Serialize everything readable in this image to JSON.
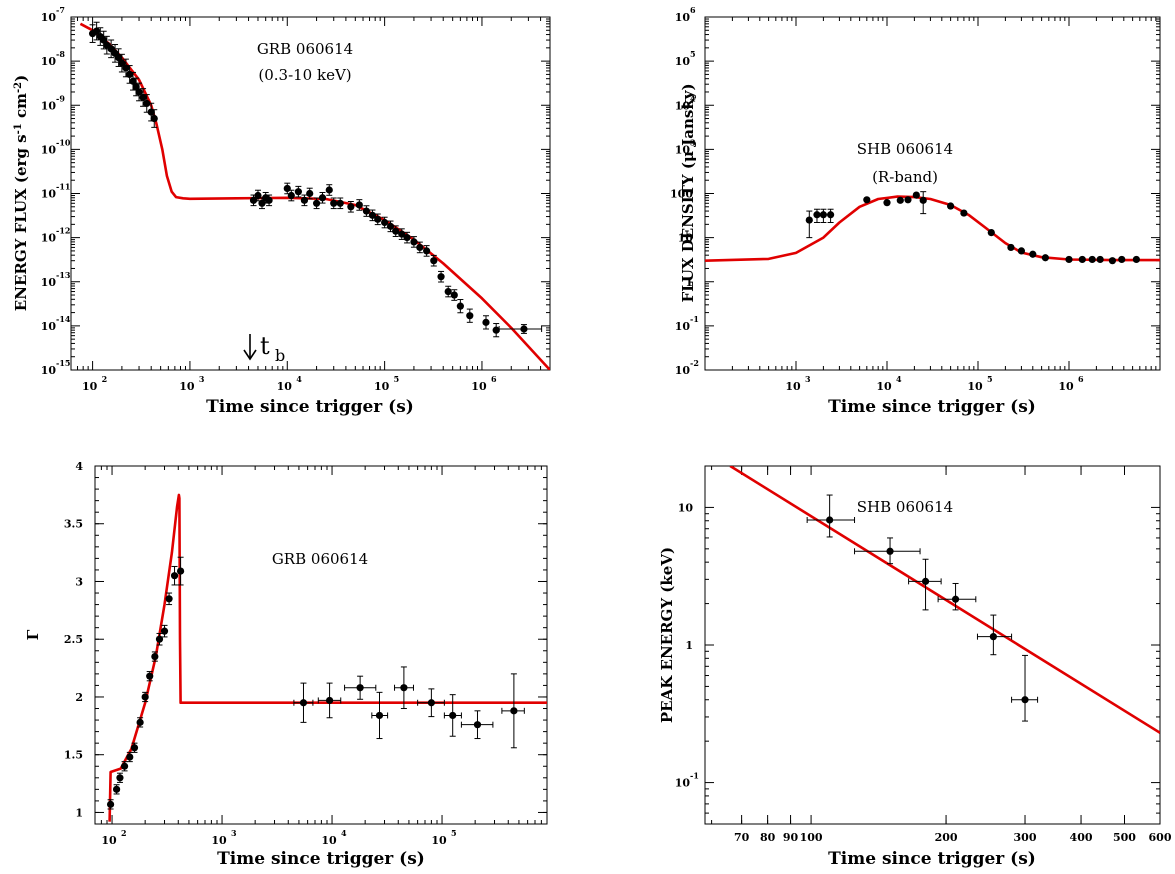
{
  "chart_data": [
    {
      "type": "scatter",
      "xscale": "log",
      "yscale": "log",
      "xlim": [
        60,
        5000000
      ],
      "ylim": [
        1e-15,
        1e-07
      ],
      "xlabel": "Time since trigger (s)",
      "ylabel": "ENERGY FLUX (erg s-1 cm-2)",
      "annotations": [
        "GRB 060614",
        "(0.3-10 keV)"
      ],
      "marker_label": "t",
      "marker_label_sub": "b",
      "marker_x": 4000,
      "x_ticks": [
        100,
        1000,
        10000,
        100000,
        1000000
      ],
      "y_ticks": [
        1e-15,
        1e-14,
        1e-13,
        1e-12,
        1e-11,
        1e-10,
        1e-09,
        1e-08,
        1e-07
      ],
      "series": [
        {
          "role": "data",
          "points": [
            {
              "x": 100,
              "y": 4.2e-08,
              "ey": 0.2
            },
            {
              "x": 110,
              "y": 4.8e-08,
              "ey": 0.2
            },
            {
              "x": 120,
              "y": 3.6e-08,
              "ey": 0.2
            },
            {
              "x": 130,
              "y": 3e-08,
              "ey": 0.2
            },
            {
              "x": 140,
              "y": 2.3e-08,
              "ey": 0.2
            },
            {
              "x": 155,
              "y": 1.9e-08,
              "ey": 0.2
            },
            {
              "x": 170,
              "y": 1.5e-08,
              "ey": 0.2
            },
            {
              "x": 185,
              "y": 1.2e-08,
              "ey": 0.2
            },
            {
              "x": 200,
              "y": 9e-09,
              "ey": 0.2
            },
            {
              "x": 220,
              "y": 7e-09,
              "ey": 0.2
            },
            {
              "x": 240,
              "y": 5e-09,
              "ey": 0.2
            },
            {
              "x": 260,
              "y": 3.5e-09,
              "ey": 0.2
            },
            {
              "x": 280,
              "y": 2.6e-09,
              "ey": 0.2
            },
            {
              "x": 300,
              "y": 2e-09,
              "ey": 0.2
            },
            {
              "x": 330,
              "y": 1.5e-09,
              "ey": 0.2
            },
            {
              "x": 360,
              "y": 1.1e-09,
              "ey": 0.2
            },
            {
              "x": 400,
              "y": 7e-10,
              "ey": 0.2
            },
            {
              "x": 430,
              "y": 5e-10,
              "ey": 0.2
            },
            {
              "x": 4500,
              "y": 7e-12,
              "ey": 0.12
            },
            {
              "x": 5000,
              "y": 9e-12,
              "ey": 0.12
            },
            {
              "x": 5500,
              "y": 6e-12,
              "ey": 0.12
            },
            {
              "x": 6000,
              "y": 8e-12,
              "ey": 0.12
            },
            {
              "x": 6500,
              "y": 7e-12,
              "ey": 0.12
            },
            {
              "x": 10000,
              "y": 1.3e-11,
              "ey": 0.12
            },
            {
              "x": 11000,
              "y": 9e-12,
              "ey": 0.12
            },
            {
              "x": 13000,
              "y": 1.1e-11,
              "ey": 0.12
            },
            {
              "x": 15000,
              "y": 7e-12,
              "ey": 0.12
            },
            {
              "x": 17000,
              "y": 1e-11,
              "ey": 0.12
            },
            {
              "x": 20000,
              "y": 6e-12,
              "ey": 0.12
            },
            {
              "x": 23000,
              "y": 8e-12,
              "ey": 0.12
            },
            {
              "x": 27000,
              "y": 1.2e-11,
              "ey": 0.12
            },
            {
              "x": 30000,
              "y": 6e-12,
              "ey": 0.12
            },
            {
              "x": 35000,
              "y": 6e-12,
              "ey": 0.12
            },
            {
              "x": 45000,
              "y": 5e-12,
              "ey": 0.12
            },
            {
              "x": 55000,
              "y": 5.5e-12,
              "ey": 0.12
            },
            {
              "x": 65000,
              "y": 4e-12,
              "ey": 0.12
            },
            {
              "x": 75000,
              "y": 3.2e-12,
              "ey": 0.12
            },
            {
              "x": 85000,
              "y": 2.6e-12,
              "ey": 0.12
            },
            {
              "x": 100000,
              "y": 2.2e-12,
              "ey": 0.12
            },
            {
              "x": 115000,
              "y": 1.8e-12,
              "ey": 0.12
            },
            {
              "x": 130000,
              "y": 1.4e-12,
              "ey": 0.12
            },
            {
              "x": 150000,
              "y": 1.2e-12,
              "ey": 0.12
            },
            {
              "x": 170000,
              "y": 1e-12,
              "ey": 0.12
            },
            {
              "x": 200000,
              "y": 8e-13,
              "ey": 0.12
            },
            {
              "x": 230000,
              "y": 6e-13,
              "ey": 0.12
            },
            {
              "x": 270000,
              "y": 5e-13,
              "ey": 0.12
            },
            {
              "x": 320000,
              "y": 3e-13,
              "ey": 0.12
            },
            {
              "x": 380000,
              "y": 1.3e-13,
              "ey": 0.12
            },
            {
              "x": 450000,
              "y": 6e-14,
              "ey": 0.12
            },
            {
              "x": 520000,
              "y": 5e-14,
              "ey": 0.12
            },
            {
              "x": 600000,
              "y": 2.8e-14,
              "ey": 0.15
            },
            {
              "x": 750000,
              "y": 1.7e-14,
              "ey": 0.15
            },
            {
              "x": 1100000,
              "y": 1.2e-14,
              "ey": 0.15
            },
            {
              "x": 1400000,
              "y": 8e-15,
              "ey": 0.15
            },
            {
              "x": 2700000,
              "y": 8.5e-15,
              "ey": 0.1,
              "exl": 1500000,
              "exh": 4100000
            }
          ]
        },
        {
          "role": "model",
          "color": "#e00000",
          "points": [
            [
              75,
              7e-08
            ],
            [
              100,
              5e-08
            ],
            [
              150,
              2.4e-08
            ],
            [
              200,
              1.2e-08
            ],
            [
              300,
              3.8e-09
            ],
            [
              400,
              1e-09
            ],
            [
              450,
              4e-10
            ],
            [
              520,
              1e-10
            ],
            [
              580,
              2.5e-11
            ],
            [
              650,
              1.1e-11
            ],
            [
              720,
              8.3e-12
            ],
            [
              850,
              7.8e-12
            ],
            [
              1000,
              7.6e-12
            ],
            [
              3000,
              7.8e-12
            ],
            [
              10000,
              8e-12
            ],
            [
              25000,
              7.5e-12
            ],
            [
              50000,
              5.5e-12
            ],
            [
              100000,
              2.5e-12
            ],
            [
              200000,
              9e-13
            ],
            [
              400000,
              2.6e-13
            ],
            [
              1000000,
              4.2e-14
            ],
            [
              2000000,
              9e-15
            ],
            [
              5000000,
              1e-15
            ]
          ]
        }
      ]
    },
    {
      "type": "scatter",
      "xscale": "log",
      "yscale": "log",
      "xlim": [
        100,
        10000000
      ],
      "ylim": [
        0.01,
        1000000
      ],
      "xlabel": "Time since trigger (s)",
      "ylabel": "FLUX DENSITY (μ Jansky)",
      "annotations": [
        "SHB 060614",
        "(R-band)"
      ],
      "x_ticks": [
        1000,
        10000,
        100000,
        1000000
      ],
      "y_ticks": [
        0.01,
        0.1,
        1,
        10,
        100,
        1000,
        10000,
        100000,
        1000000
      ],
      "series": [
        {
          "role": "data",
          "points": [
            {
              "x": 1400,
              "y": 25,
              "eyl": 10,
              "eyh": 40
            },
            {
              "x": 1700,
              "y": 33,
              "eyl": 22,
              "eyh": 44
            },
            {
              "x": 2000,
              "y": 33,
              "eyl": 22,
              "eyh": 44
            },
            {
              "x": 2400,
              "y": 33,
              "eyl": 22,
              "eyh": 44
            },
            {
              "x": 6000,
              "y": 72
            },
            {
              "x": 10000,
              "y": 62
            },
            {
              "x": 14000,
              "y": 70
            },
            {
              "x": 17000,
              "y": 72
            },
            {
              "x": 21000,
              "y": 92
            },
            {
              "x": 25000,
              "y": 70,
              "eyl": 35,
              "eyh": 110
            },
            {
              "x": 50000,
              "y": 52
            },
            {
              "x": 70000,
              "y": 36
            },
            {
              "x": 140000,
              "y": 13
            },
            {
              "x": 230000,
              "y": 6
            },
            {
              "x": 300000,
              "y": 5
            },
            {
              "x": 400000,
              "y": 4.2
            },
            {
              "x": 550000,
              "y": 3.5
            },
            {
              "x": 1000000,
              "y": 3.2
            },
            {
              "x": 1400000,
              "y": 3.2
            },
            {
              "x": 1800000,
              "y": 3.2
            },
            {
              "x": 2200000,
              "y": 3.2
            },
            {
              "x": 3000000,
              "y": 3.0
            },
            {
              "x": 3800000,
              "y": 3.2
            },
            {
              "x": 5500000,
              "y": 3.2
            }
          ]
        },
        {
          "role": "model",
          "color": "#e00000",
          "points": [
            [
              100,
              3.0
            ],
            [
              500,
              3.3
            ],
            [
              1000,
              4.5
            ],
            [
              2000,
              10
            ],
            [
              3000,
              22
            ],
            [
              5000,
              50
            ],
            [
              8000,
              75
            ],
            [
              13000,
              85
            ],
            [
              20000,
              83
            ],
            [
              30000,
              75
            ],
            [
              50000,
              55
            ],
            [
              80000,
              32
            ],
            [
              120000,
              17
            ],
            [
              200000,
              7.5
            ],
            [
              300000,
              4.6
            ],
            [
              500000,
              3.6
            ],
            [
              1000000,
              3.2
            ],
            [
              3000000,
              3.1
            ],
            [
              10000000,
              3.1
            ]
          ]
        }
      ]
    },
    {
      "type": "scatter",
      "xscale": "log",
      "yscale": "linear",
      "xlim": [
        70,
        900000
      ],
      "ylim": [
        0.9,
        4.0
      ],
      "xlabel": "Time since trigger (s)",
      "ylabel": "Γ",
      "annotations": [
        "GRB 060614"
      ],
      "x_ticks": [
        100,
        1000,
        10000,
        100000
      ],
      "y_ticks": [
        1,
        1.5,
        2,
        2.5,
        3,
        3.5,
        4
      ],
      "series": [
        {
          "role": "data",
          "points": [
            {
              "x": 97,
              "y": 1.07,
              "ey": 0.04
            },
            {
              "x": 110,
              "y": 1.2,
              "ey": 0.04
            },
            {
              "x": 118,
              "y": 1.3,
              "ey": 0.04
            },
            {
              "x": 130,
              "y": 1.4,
              "ey": 0.04
            },
            {
              "x": 145,
              "y": 1.48,
              "ey": 0.04
            },
            {
              "x": 160,
              "y": 1.56,
              "ey": 0.04
            },
            {
              "x": 180,
              "y": 1.78,
              "ey": 0.04
            },
            {
              "x": 200,
              "y": 2.0,
              "ey": 0.04
            },
            {
              "x": 220,
              "y": 2.18,
              "ey": 0.04
            },
            {
              "x": 245,
              "y": 2.35,
              "ey": 0.04
            },
            {
              "x": 270,
              "y": 2.5,
              "ey": 0.05
            },
            {
              "x": 300,
              "y": 2.57,
              "ey": 0.05
            },
            {
              "x": 330,
              "y": 2.85,
              "ey": 0.05
            },
            {
              "x": 370,
              "y": 3.05,
              "ey": 0.08
            },
            {
              "x": 420,
              "y": 3.09,
              "ey": 0.12
            },
            {
              "x": 5500,
              "y": 1.95,
              "ey": 0.17,
              "exl": 4500,
              "exh": 6700
            },
            {
              "x": 9500,
              "y": 1.97,
              "ey": 0.15,
              "exl": 7500,
              "exh": 12000
            },
            {
              "x": 18000,
              "y": 2.08,
              "ey": 0.1,
              "exl": 13000,
              "exh": 25000
            },
            {
              "x": 27000,
              "y": 1.84,
              "ey": 0.2,
              "exl": 23000,
              "exh": 32000
            },
            {
              "x": 45000,
              "y": 2.08,
              "ey": 0.18,
              "exl": 37000,
              "exh": 55000
            },
            {
              "x": 80000,
              "y": 1.95,
              "ey": 0.12,
              "exl": 60000,
              "exh": 105000
            },
            {
              "x": 125000,
              "y": 1.84,
              "ey": 0.18,
              "exl": 105000,
              "exh": 150000
            },
            {
              "x": 210000,
              "y": 1.76,
              "ey": 0.12,
              "exl": 150000,
              "exh": 290000
            },
            {
              "x": 450000,
              "y": 1.88,
              "ey": 0.32,
              "exl": 350000,
              "exh": 560000
            }
          ]
        },
        {
          "role": "model",
          "color": "#e00000",
          "points": [
            [
              95,
              0.92
            ],
            [
              97,
              1.35
            ],
            [
              120,
              1.38
            ],
            [
              150,
              1.55
            ],
            [
              200,
              1.95
            ],
            [
              250,
              2.35
            ],
            [
              300,
              2.8
            ],
            [
              350,
              3.25
            ],
            [
              390,
              3.65
            ],
            [
              405,
              3.75
            ],
            [
              410,
              3.72
            ],
            [
              415,
              2.5
            ],
            [
              420,
              1.95
            ],
            [
              1000,
              1.95
            ],
            [
              900000,
              1.95
            ]
          ]
        }
      ]
    },
    {
      "type": "scatter",
      "xscale": "log",
      "yscale": "log",
      "xlim": [
        58,
        600
      ],
      "ylim": [
        0.05,
        20
      ],
      "xlabel": "Time since trigger (s)",
      "ylabel": "PEAK ENERGY (keV)",
      "annotations": [
        "SHB 060614"
      ],
      "x_ticks": [
        70,
        80,
        90,
        100,
        200,
        300,
        400,
        500,
        600
      ],
      "y_tick_labels": [
        "10",
        "1",
        "10-1"
      ],
      "y_ticks": [
        10,
        1,
        0.1
      ],
      "series": [
        {
          "role": "data",
          "points": [
            {
              "x": 110,
              "y": 8.1,
              "eyl": 6.1,
              "eyh": 12.3,
              "exl": 98,
              "exh": 125
            },
            {
              "x": 150,
              "y": 4.8,
              "eyl": 3.9,
              "eyh": 6.0,
              "exl": 125,
              "exh": 175
            },
            {
              "x": 180,
              "y": 2.9,
              "eyl": 1.8,
              "eyh": 4.2,
              "exl": 165,
              "exh": 195
            },
            {
              "x": 210,
              "y": 2.15,
              "eyl": 1.8,
              "eyh": 2.8,
              "exl": 192,
              "exh": 233
            },
            {
              "x": 255,
              "y": 1.15,
              "eyl": 0.85,
              "eyh": 1.65,
              "exl": 235,
              "exh": 280
            },
            {
              "x": 300,
              "y": 0.4,
              "eyl": 0.28,
              "eyh": 0.84,
              "exl": 280,
              "exh": 320
            }
          ]
        },
        {
          "role": "model",
          "color": "#e00000",
          "points": [
            [
              66,
              20
            ],
            [
              600,
              0.23
            ]
          ]
        }
      ]
    }
  ]
}
